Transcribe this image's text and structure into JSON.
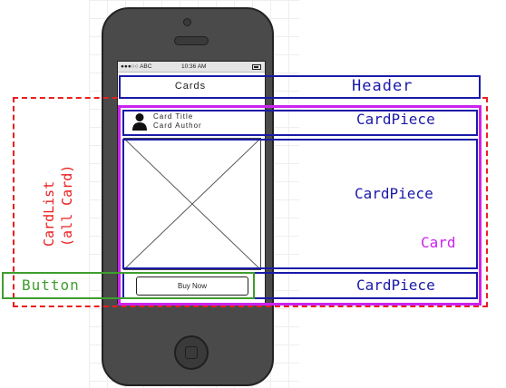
{
  "phone": {
    "status_carrier": "●●●○○ ABC",
    "status_time": "10:36 AM",
    "screen_title": "Cards",
    "card_title": "Card Title",
    "card_author": "Card Author",
    "buy_button_label": "Buy Now"
  },
  "annotations": {
    "header": "Header",
    "card_piece_top": "CardPiece",
    "card_piece_middle": "CardPiece",
    "card_piece_bottom": "CardPiece",
    "card": "Card",
    "button": "Button",
    "cardlist_line1": "CardList",
    "cardlist_line2": "(all Card)"
  },
  "colors": {
    "header_blue": "#1a1aa8",
    "card_magenta": "#cc22ee",
    "button_green": "#3e9e2e",
    "cardlist_red": "#e8201f",
    "phone_body": "#4a4a4a"
  }
}
